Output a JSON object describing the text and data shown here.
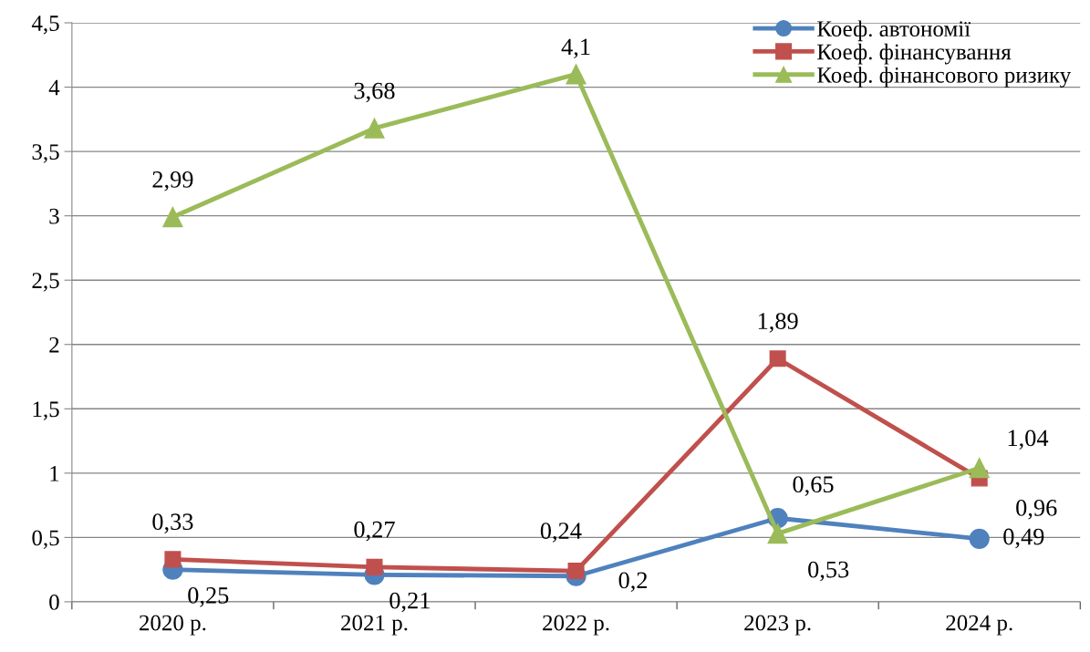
{
  "chart_data": {
    "type": "line",
    "categories": [
      "2020 р.",
      "2021 р.",
      "2022 р.",
      "2023 р.",
      "2024 р."
    ],
    "series": [
      {
        "name": "Коеф. автономії",
        "color": "#4f81bd",
        "marker": "circle",
        "values": [
          0.25,
          0.21,
          0.2,
          0.65,
          0.49
        ],
        "value_labels": [
          "0,25",
          "0,21",
          "0,2",
          "0,65",
          "0,49"
        ]
      },
      {
        "name": "Коеф. фінансування",
        "color": "#c0504d",
        "marker": "square",
        "values": [
          0.33,
          0.27,
          0.24,
          1.89,
          0.96
        ],
        "value_labels": [
          "0,33",
          "0,27",
          "0,24",
          "1,89",
          "0,96"
        ]
      },
      {
        "name": "Коеф. фінансового ризику",
        "color": "#9bbb59",
        "marker": "triangle",
        "values": [
          2.99,
          3.68,
          4.1,
          0.53,
          1.04
        ],
        "value_labels": [
          "2,99",
          "3,68",
          "4,1",
          "0,53",
          "1,04"
        ]
      }
    ],
    "ylim": [
      0,
      4.5
    ],
    "yticks": [
      0,
      {
        "value": 0.5,
        "label": "0,5"
      },
      1,
      {
        "value": 1.5,
        "label": "1,5"
      },
      2,
      {
        "value": 2.5,
        "label": "2,5"
      },
      3,
      {
        "value": 3.5,
        "label": "3,5"
      },
      4,
      {
        "value": 4.5,
        "label": "4,5"
      }
    ],
    "grid": "y",
    "legend": "top right",
    "line_style": "solid"
  }
}
